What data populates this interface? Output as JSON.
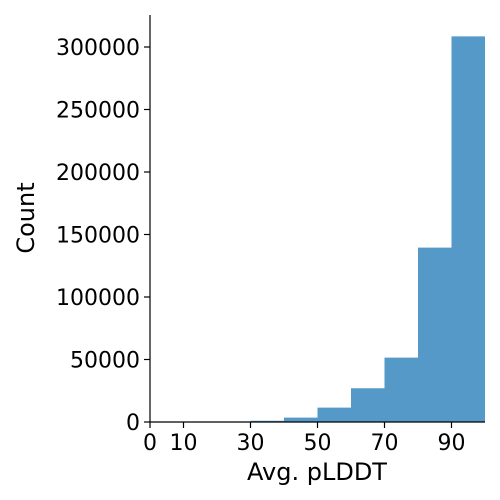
{
  "chart_data": {
    "type": "bar",
    "title": "",
    "xlabel": "Avg. pLDDT",
    "ylabel": "Count",
    "xlim": [
      0,
      100
    ],
    "ylim": [
      0,
      325000
    ],
    "xticks": [
      "0",
      "10",
      "30",
      "50",
      "70",
      "90"
    ],
    "yticks": [
      "0",
      "50000",
      "100000",
      "150000",
      "200000",
      "250000",
      "300000"
    ],
    "bins": [
      {
        "x0": 0,
        "x1": 10,
        "value": 0
      },
      {
        "x0": 10,
        "x1": 20,
        "value": 0
      },
      {
        "x0": 20,
        "x1": 30,
        "value": 0
      },
      {
        "x0": 30,
        "x1": 40,
        "value": 1000
      },
      {
        "x0": 40,
        "x1": 50,
        "value": 3500
      },
      {
        "x0": 50,
        "x1": 60,
        "value": 11500
      },
      {
        "x0": 60,
        "x1": 70,
        "value": 27000
      },
      {
        "x0": 70,
        "x1": 80,
        "value": 51500
      },
      {
        "x0": 80,
        "x1": 90,
        "value": 139500
      },
      {
        "x0": 90,
        "x1": 100,
        "value": 308500
      }
    ],
    "bar_color": "#5499c7",
    "grid": false,
    "legend": "none"
  }
}
